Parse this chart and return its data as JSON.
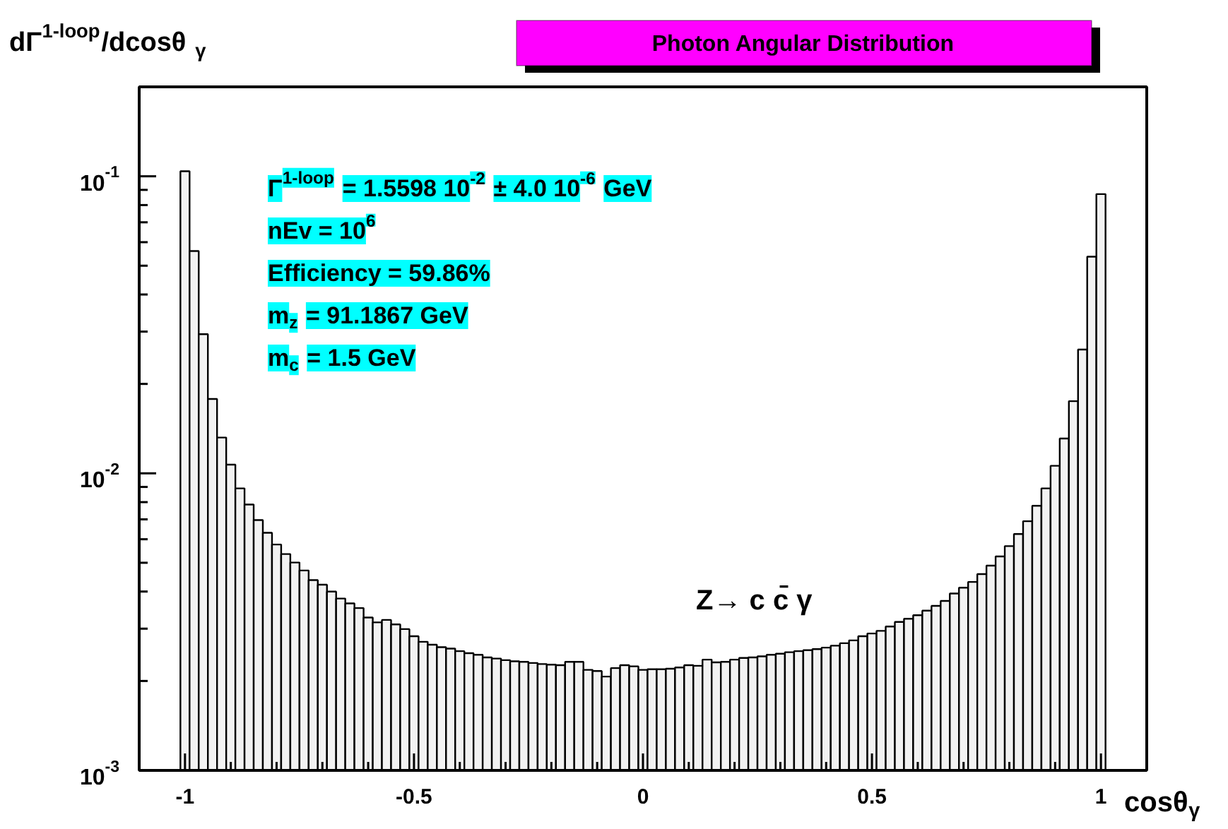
{
  "chart_data": {
    "type": "histogram",
    "title": "Photon Angular Distribution",
    "xlabel": "cosθ$_{γ}$",
    "ylabel": "dΓ$^{1-loop}$/dcosθ$_{γ}$",
    "color": "#f2f2f2",
    "log": "y",
    "grid": false,
    "xlim": [
      -1.1,
      1.1
    ],
    "ylim": [
      0.001,
      0.2
    ],
    "xticks": [
      -1,
      {
        "value": -0.9,
        "label": null
      },
      {
        "value": -0.8,
        "label": null
      },
      {
        "value": -0.7,
        "label": null
      },
      {
        "value": -0.6,
        "label": null
      },
      -0.5,
      {
        "value": -0.4,
        "label": null
      },
      {
        "value": -0.3,
        "label": null
      },
      {
        "value": -0.2,
        "label": null
      },
      {
        "value": -0.1,
        "label": null
      },
      0,
      {
        "value": 0.1,
        "label": null
      },
      {
        "value": 0.2,
        "label": null
      },
      {
        "value": 0.3,
        "label": null
      },
      {
        "value": 0.4,
        "label": null
      },
      0.5,
      {
        "value": 0.6,
        "label": null
      },
      {
        "value": 0.7,
        "label": null
      },
      {
        "value": 0.8,
        "label": null
      },
      {
        "value": 0.9,
        "label": null
      },
      1
    ],
    "yticks": [
      {
        "value": 0.001,
        "label": "10$^{-3}$"
      },
      {
        "value": 0.002,
        "label": null
      },
      {
        "value": 0.003,
        "label": null
      },
      {
        "value": 0.004,
        "label": null
      },
      {
        "value": 0.005,
        "label": null
      },
      {
        "value": 0.006,
        "label": null
      },
      {
        "value": 0.007,
        "label": null
      },
      {
        "value": 0.008,
        "label": null
      },
      {
        "value": 0.009,
        "label": null
      },
      {
        "value": 0.01,
        "label": "10$^{-2}$"
      },
      {
        "value": 0.02,
        "label": null
      },
      {
        "value": 0.03,
        "label": null
      },
      {
        "value": 0.04,
        "label": null
      },
      {
        "value": 0.05,
        "label": null
      },
      {
        "value": 0.06,
        "label": null
      },
      {
        "value": 0.07,
        "label": null
      },
      {
        "value": 0.08,
        "label": null
      },
      {
        "value": 0.09,
        "label": null
      },
      {
        "value": 0.1,
        "label": "10$^{-1}$"
      }
    ],
    "bins": [
      -1.01,
      -0.99,
      -0.97,
      -0.95,
      -0.93,
      -0.91,
      -0.89,
      -0.87,
      -0.85,
      -0.83,
      -0.81,
      -0.79,
      -0.77,
      -0.75,
      -0.73,
      -0.71,
      -0.69,
      -0.67,
      -0.65,
      -0.63,
      -0.61,
      -0.59,
      -0.57,
      -0.55,
      -0.53,
      -0.51,
      -0.49,
      -0.47,
      -0.45,
      -0.43,
      -0.41,
      -0.39,
      -0.37,
      -0.35,
      -0.33,
      -0.31,
      -0.29,
      -0.27,
      -0.25,
      -0.23,
      -0.21,
      -0.19,
      -0.17,
      -0.15,
      -0.13,
      -0.11,
      -0.09,
      -0.07,
      -0.05,
      -0.03,
      -0.01,
      0.01,
      0.03,
      0.05,
      0.07,
      0.09,
      0.11,
      0.13,
      0.15,
      0.17,
      0.19,
      0.21,
      0.23,
      0.25,
      0.27,
      0.29,
      0.31,
      0.33,
      0.35,
      0.37,
      0.39,
      0.41,
      0.43,
      0.45,
      0.47,
      0.49,
      0.51,
      0.53,
      0.55,
      0.57,
      0.59,
      0.61,
      0.63,
      0.65,
      0.67,
      0.69,
      0.71,
      0.73,
      0.75,
      0.77,
      0.79,
      0.81,
      0.83,
      0.85,
      0.87,
      0.89,
      0.91,
      0.93,
      0.95,
      0.97,
      0.99,
      1.01
    ],
    "values": [
      0.104,
      0.056,
      0.0294,
      0.0178,
      0.0132,
      0.0107,
      0.0089,
      0.00785,
      0.00696,
      0.00631,
      0.00576,
      0.00535,
      0.00501,
      0.00471,
      0.00437,
      0.00422,
      0.004,
      0.00379,
      0.00365,
      0.00352,
      0.00327,
      0.00315,
      0.00321,
      0.0031,
      0.00299,
      0.00283,
      0.00271,
      0.00265,
      0.0026,
      0.00257,
      0.00252,
      0.00248,
      0.00245,
      0.0024,
      0.00238,
      0.00235,
      0.00233,
      0.00232,
      0.0023,
      0.00228,
      0.00227,
      0.00226,
      0.00232,
      0.00232,
      0.00218,
      0.00216,
      0.00207,
      0.00221,
      0.00226,
      0.00224,
      0.00218,
      0.00219,
      0.00219,
      0.0022,
      0.00222,
      0.00226,
      0.00225,
      0.00236,
      0.00231,
      0.00232,
      0.00236,
      0.00239,
      0.0024,
      0.00242,
      0.00245,
      0.00247,
      0.0025,
      0.00252,
      0.00254,
      0.00256,
      0.00259,
      0.00263,
      0.00268,
      0.00274,
      0.00283,
      0.00289,
      0.00295,
      0.00305,
      0.00316,
      0.00324,
      0.00333,
      0.00345,
      0.00358,
      0.00372,
      0.00394,
      0.00412,
      0.00431,
      0.00458,
      0.00489,
      0.00525,
      0.00569,
      0.00625,
      0.0069,
      0.00778,
      0.0089,
      0.0106,
      0.0131,
      0.0175,
      0.0261,
      0.0536,
      0.0871
    ],
    "annotations": [
      "Γ$^{1-loop}$ = 1.5598 10$^{-2}$ ± 4.0 10$^{-6}$ GeV",
      "nEv = 10$^{6}$",
      "Efficiency = 59.86%",
      "m$_{z}$ = 91.1867 GeV",
      "m$_{c}$ = 1.5 GeV",
      "Z→ c c̄ γ"
    ]
  }
}
